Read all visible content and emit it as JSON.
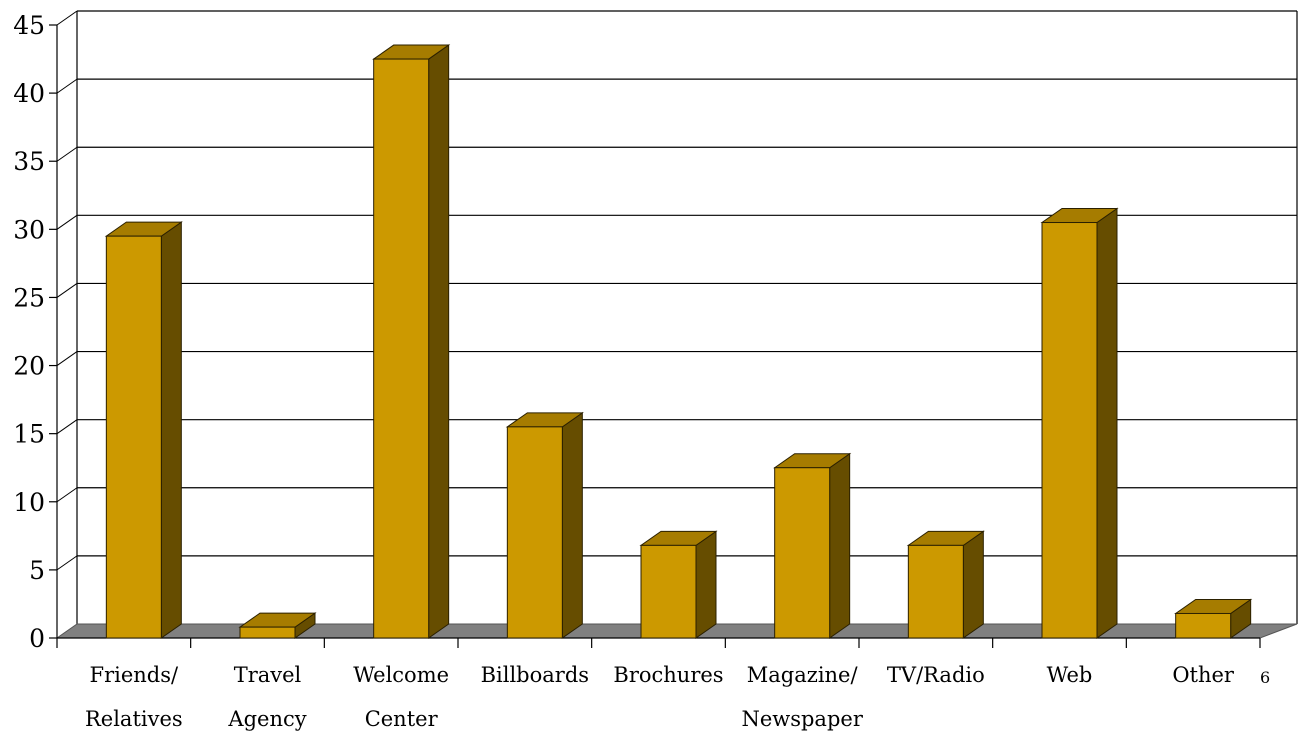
{
  "chart_data": {
    "type": "bar",
    "title": "",
    "xlabel": "",
    "ylabel": "",
    "categories": [
      [
        "Friends/",
        "Relatives"
      ],
      [
        "Travel",
        "Agency"
      ],
      [
        "Welcome",
        "Center"
      ],
      [
        "Billboards"
      ],
      [
        "Brochures"
      ],
      [
        "Magazine/",
        "Newspaper"
      ],
      [
        "TV/Radio"
      ],
      [
        "Web"
      ],
      [
        "Other"
      ]
    ],
    "values": [
      29.5,
      0.8,
      42.5,
      15.5,
      6.8,
      12.5,
      6.8,
      30.5,
      1.8
    ],
    "ylim": [
      0,
      45
    ],
    "yticks": [
      0,
      5,
      10,
      15,
      20,
      25,
      30,
      35,
      40,
      45
    ],
    "grid": true,
    "legend": "none",
    "style": "3d-column"
  },
  "colors": {
    "bar_front": "#CC9900",
    "bar_top": "#A67C00",
    "bar_side": "#664D00",
    "floor": "#808080",
    "grid": "#000000"
  },
  "page_number": "6"
}
